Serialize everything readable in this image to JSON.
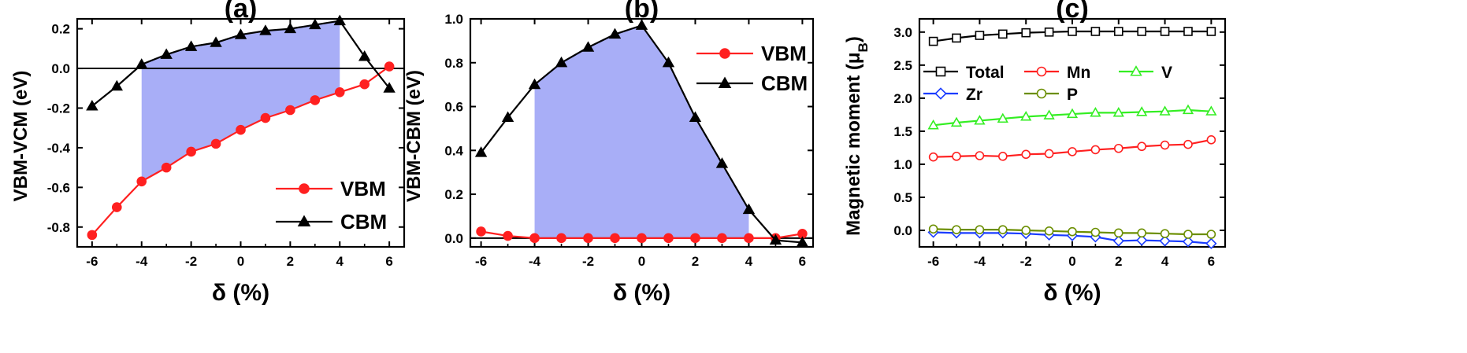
{
  "chart_data": [
    {
      "id": "a",
      "type": "line",
      "title": "(a)",
      "xlabel": "δ (%)",
      "ylabel": "VBM-VCM (eV)",
      "xlim": [
        -6.6,
        6.6
      ],
      "ylim": [
        -0.9,
        0.25
      ],
      "xticks": [
        -6,
        -4,
        -2,
        0,
        2,
        4,
        6
      ],
      "yticks": [
        -0.8,
        -0.6,
        -0.4,
        -0.2,
        0.0,
        0.2
      ],
      "yprecision": 1,
      "zero_line": true,
      "shade": {
        "from": -4,
        "to": 4,
        "lower": "VBM",
        "upper": "CBM",
        "color": "#a8aef7"
      },
      "legend_position": "lower-right",
      "x": [
        -6,
        -5,
        -4,
        -3,
        -2,
        -1,
        0,
        1,
        2,
        3,
        4,
        5,
        6
      ],
      "series": [
        {
          "name": "VBM",
          "color": "#ff2020",
          "marker": "circle",
          "filled": true,
          "values": [
            -0.84,
            -0.7,
            -0.57,
            -0.5,
            -0.42,
            -0.38,
            -0.31,
            -0.25,
            -0.21,
            -0.16,
            -0.12,
            -0.08,
            0.01
          ]
        },
        {
          "name": "CBM",
          "color": "#000000",
          "marker": "triangle",
          "filled": true,
          "values": [
            -0.19,
            -0.09,
            0.02,
            0.07,
            0.11,
            0.13,
            0.17,
            0.19,
            0.2,
            0.22,
            0.24,
            0.06,
            -0.1
          ]
        }
      ]
    },
    {
      "id": "b",
      "type": "line",
      "title": "(b)",
      "xlabel": "δ (%)",
      "ylabel": "VBM-CBM (eV)",
      "xlim": [
        -6.4,
        6.4
      ],
      "ylim": [
        -0.04,
        1.0
      ],
      "xticks": [
        -6,
        -4,
        -2,
        0,
        2,
        4,
        6
      ],
      "yticks": [
        0.0,
        0.2,
        0.4,
        0.6,
        0.8,
        1.0
      ],
      "yprecision": 1,
      "zero_line": true,
      "shade": {
        "from": -4,
        "to": 4,
        "lower": "VBM",
        "upper": "CBM",
        "color": "#a8aef7"
      },
      "legend_position": "top-right",
      "x": [
        -6,
        -5,
        -4,
        -3,
        -2,
        -1,
        0,
        1,
        2,
        3,
        4,
        5,
        6
      ],
      "series": [
        {
          "name": "VBM",
          "color": "#ff2020",
          "marker": "circle",
          "filled": true,
          "values": [
            0.03,
            0.01,
            0.0,
            0.0,
            0.0,
            0.0,
            0.0,
            0.0,
            0.0,
            0.0,
            0.0,
            0.0,
            0.02
          ]
        },
        {
          "name": "CBM",
          "color": "#000000",
          "marker": "triangle",
          "filled": true,
          "values": [
            0.39,
            0.55,
            0.7,
            0.8,
            0.87,
            0.93,
            0.97,
            0.8,
            0.55,
            0.34,
            0.13,
            -0.01,
            -0.02
          ]
        }
      ]
    },
    {
      "id": "c",
      "type": "line",
      "title": "(c)",
      "xlabel": "δ (%)",
      "ylabel": "Magnetic moment (μ",
      "ylabel_sub": "B",
      "ylabel_end": ")",
      "xlim": [
        -6.6,
        6.6
      ],
      "ylim": [
        -0.25,
        3.2
      ],
      "xticks": [
        -6,
        -4,
        -2,
        0,
        2,
        4,
        6
      ],
      "yticks": [
        0.0,
        0.5,
        1.0,
        1.5,
        2.0,
        2.5,
        3.0
      ],
      "yprecision": 1,
      "zero_line": false,
      "legend_position": "top-left",
      "x": [
        -6,
        -5,
        -4,
        -3,
        -2,
        -1,
        0,
        1,
        2,
        3,
        4,
        5,
        6
      ],
      "series": [
        {
          "name": "Total",
          "color": "#000000",
          "marker": "square",
          "filled": false,
          "values": [
            2.86,
            2.91,
            2.95,
            2.97,
            2.99,
            3.0,
            3.01,
            3.01,
            3.01,
            3.01,
            3.01,
            3.01,
            3.01
          ]
        },
        {
          "name": "Mn",
          "color": "#ff2020",
          "marker": "circle",
          "filled": false,
          "values": [
            1.11,
            1.12,
            1.13,
            1.12,
            1.15,
            1.16,
            1.19,
            1.22,
            1.24,
            1.27,
            1.29,
            1.3,
            1.37
          ]
        },
        {
          "name": "V",
          "color": "#33ee22",
          "marker": "triangle",
          "filled": false,
          "values": [
            1.59,
            1.63,
            1.66,
            1.69,
            1.72,
            1.74,
            1.76,
            1.78,
            1.78,
            1.79,
            1.8,
            1.82,
            1.8
          ]
        },
        {
          "name": "Zr",
          "color": "#1a3cff",
          "marker": "diamond",
          "filled": false,
          "values": [
            -0.03,
            -0.04,
            -0.04,
            -0.04,
            -0.05,
            -0.07,
            -0.08,
            -0.1,
            -0.16,
            -0.15,
            -0.16,
            -0.17,
            -0.2
          ]
        },
        {
          "name": "P",
          "color": "#6b8e00",
          "marker": "circle",
          "filled": false,
          "values": [
            0.02,
            0.01,
            0.01,
            0.01,
            0.0,
            -0.01,
            -0.02,
            -0.03,
            -0.04,
            -0.04,
            -0.05,
            -0.06,
            -0.06
          ]
        }
      ]
    }
  ]
}
